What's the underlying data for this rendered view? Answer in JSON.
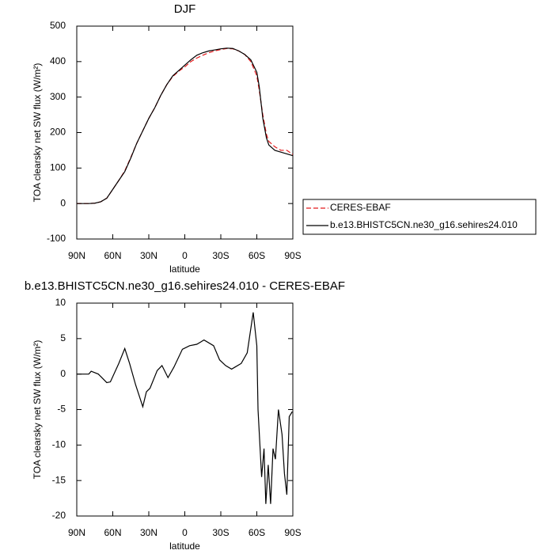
{
  "chart_data": [
    {
      "type": "line",
      "title": "DJF",
      "x_label": "latitude",
      "y_label": "TOA clearsky net SW flux (W/m²)",
      "x": [
        90,
        85,
        80,
        75,
        70,
        65,
        60,
        55,
        50,
        45,
        40,
        35,
        30,
        25,
        20,
        15,
        10,
        5,
        0,
        -5,
        -10,
        -15,
        -20,
        -25,
        -30,
        -35,
        -40,
        -45,
        -50,
        -55,
        -60,
        -62,
        -65,
        -68,
        -70,
        -75,
        -80,
        -85,
        -90
      ],
      "series": [
        {
          "name": "CERES-EBAF",
          "color": "#e41a1c",
          "dash": true,
          "values": [
            0,
            0,
            0,
            1,
            5,
            15,
            40,
            65,
            92,
            130,
            170,
            205,
            240,
            270,
            305,
            335,
            358,
            373,
            385,
            400,
            410,
            418,
            425,
            430,
            434,
            437,
            436,
            430,
            420,
            400,
            360,
            320,
            250,
            195,
            175,
            160,
            150,
            150,
            138
          ]
        },
        {
          "name": "b.e13.BHISTC5CN.ne30_g16.sehires24.010",
          "color": "#000000",
          "dash": false,
          "values": [
            0,
            0,
            0,
            1,
            5,
            15,
            40,
            65,
            90,
            128,
            170,
            205,
            240,
            270,
            305,
            335,
            360,
            375,
            390,
            405,
            418,
            425,
            430,
            433,
            436,
            438,
            437,
            430,
            420,
            405,
            370,
            330,
            240,
            185,
            165,
            150,
            145,
            140,
            135
          ]
        }
      ],
      "xlim": [
        90,
        -90
      ],
      "xticks": [
        {
          "value": 90,
          "label": "90N"
        },
        {
          "value": 60,
          "label": "60N"
        },
        {
          "value": 30,
          "label": "30N"
        },
        0,
        {
          "value": -30,
          "label": "30S"
        },
        {
          "value": -60,
          "label": "60S"
        },
        {
          "value": -90,
          "label": "90S"
        }
      ],
      "ylim": [
        -100,
        500
      ],
      "yticks": [
        -100,
        0,
        100,
        200,
        300,
        400,
        500
      ]
    },
    {
      "type": "line",
      "title": "b.e13.BHISTC5CN.ne30_g16.sehires24.010 - CERES-EBAF",
      "x_label": "latitude",
      "y_label": "TOA clearsky net SW flux (W/m²)",
      "x": [
        90,
        80,
        78,
        72,
        65,
        62,
        55,
        50,
        46,
        41,
        35,
        32,
        29,
        23,
        19,
        14,
        9,
        2,
        -4,
        -10,
        -16,
        -24,
        -29,
        -34,
        -39,
        -42,
        -47,
        -52,
        -57,
        -60,
        -61,
        -64,
        -66,
        -67.5,
        -69.5,
        -71.5,
        -73.5,
        -75.5,
        -78,
        -81,
        -83,
        -85,
        -87,
        -89.5
      ],
      "values": [
        0,
        0,
        0.4,
        0,
        -1.2,
        -1.1,
        1.5,
        3.6,
        1.5,
        -1.5,
        -4.6,
        -2.5,
        -2,
        0.5,
        1.2,
        -0.5,
        1,
        3.5,
        4,
        4.2,
        4.8,
        4,
        2,
        1.2,
        0.7,
        1,
        1.5,
        3,
        8.7,
        4,
        -5,
        -14.5,
        -10.5,
        -18.3,
        -12.8,
        -18.3,
        -10.5,
        -12,
        -5,
        -8.5,
        -14,
        -17,
        -6,
        -5.3
      ],
      "color": "#000000",
      "xlim": [
        90,
        -90
      ],
      "xticks": [
        {
          "value": 90,
          "label": "90N"
        },
        {
          "value": 60,
          "label": "60N"
        },
        {
          "value": 30,
          "label": "30N"
        },
        0,
        {
          "value": -30,
          "label": "30S"
        },
        {
          "value": -60,
          "label": "60S"
        },
        {
          "value": -90,
          "label": "90S"
        }
      ],
      "ylim": [
        -20,
        10
      ],
      "yticks": [
        -20,
        -15,
        -10,
        -5,
        0,
        5,
        10
      ]
    }
  ]
}
